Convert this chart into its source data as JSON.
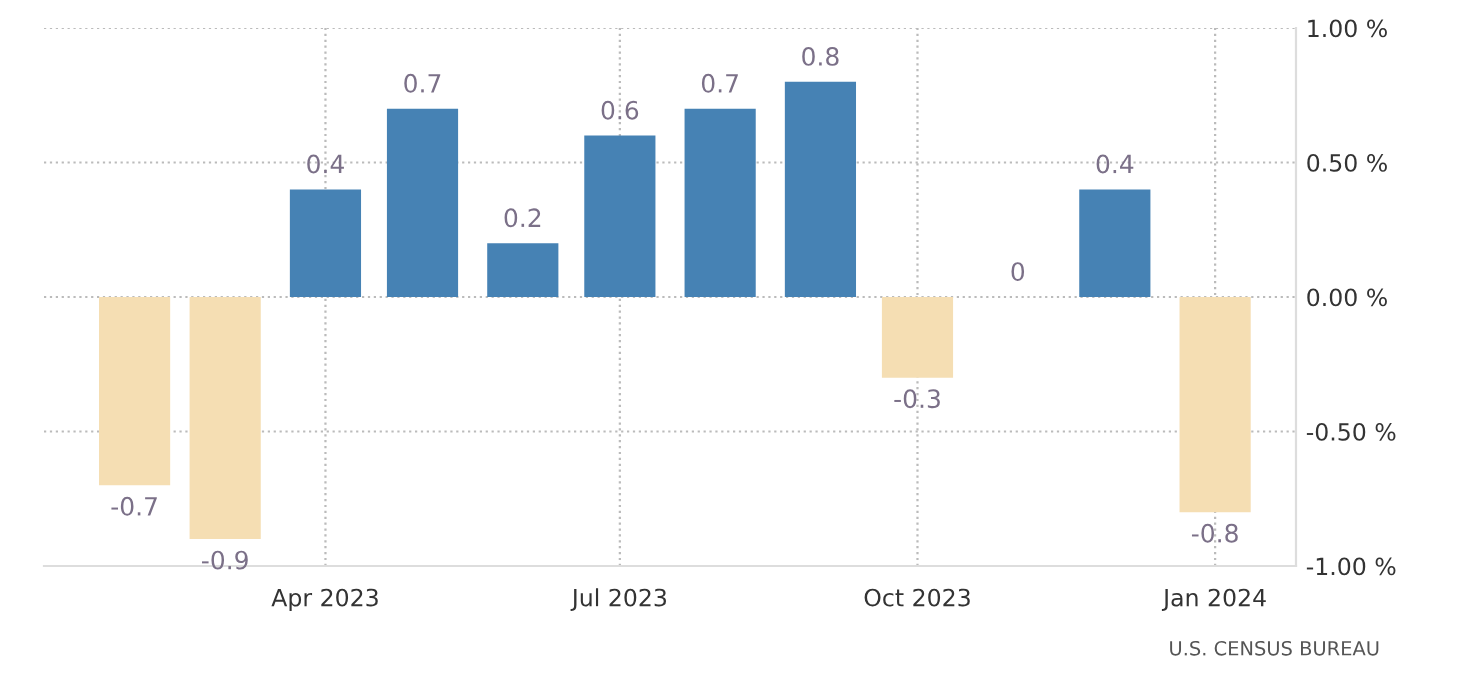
{
  "chart_data": {
    "type": "bar",
    "x": [
      "2023-02-01",
      "2023-03-01",
      "2023-04-01",
      "2023-05-01",
      "2023-06-01",
      "2023-07-01",
      "2023-08-01",
      "2023-09-01",
      "2023-10-01",
      "2023-11-01",
      "2023-12-01",
      "2024-01-01"
    ],
    "values": [
      -0.7,
      -0.9,
      0.4,
      0.7,
      0.2,
      0.6,
      0.7,
      0.8,
      -0.3,
      0,
      0.4,
      -0.8
    ],
    "colors": [
      "#f5deb3",
      "#f5deb3",
      "#4682b4",
      "#4682b4",
      "#4682b4",
      "#4682b4",
      "#4682b4",
      "#4682b4",
      "#f5deb3",
      "#4682b4",
      "#4682b4",
      "#f5deb3"
    ],
    "data_labels": true,
    "xlim": [
      "2023-01-04",
      "2024-01-26"
    ],
    "xticks": [
      {
        "value": "2023-04-01",
        "label": "Apr 2023"
      },
      {
        "value": "2023-07-01",
        "label": "Jul 2023"
      },
      {
        "value": "2023-10-01",
        "label": "Oct 2023"
      },
      {
        "value": "2024-01-01",
        "label": "Jan 2024"
      }
    ],
    "ylim": [
      -1.0,
      1.0
    ],
    "yticks": [
      {
        "value": -1.0,
        "label": "-1.00 %"
      },
      {
        "value": -0.5,
        "label": "-0.50 %"
      },
      {
        "value": 0.0,
        "label": "0.00 %"
      },
      {
        "value": 0.5,
        "label": "0.50 %"
      },
      {
        "value": 1.0,
        "label": "1.00 %"
      }
    ],
    "grid": true,
    "annotations": [
      "U.S. CENSUS BUREAU"
    ]
  }
}
